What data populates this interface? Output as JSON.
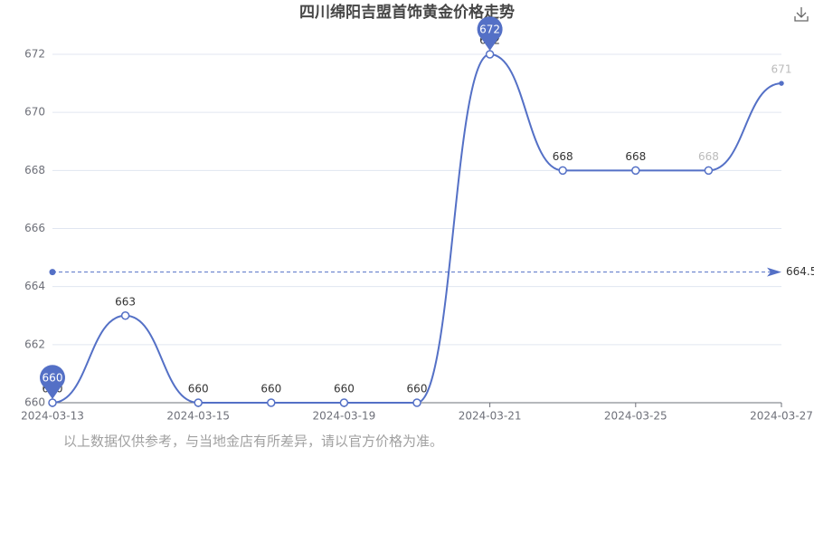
{
  "chart_data": {
    "type": "line",
    "title": "四川绵阳吉盟首饰黄金价格走势",
    "categories": [
      "2024-03-13",
      null,
      "2024-03-15",
      null,
      "2024-03-19",
      null,
      "2024-03-21",
      null,
      "2024-03-25",
      null,
      "2024-03-27"
    ],
    "values": [
      660,
      663,
      660,
      660,
      660,
      660,
      672,
      668,
      668,
      668,
      671
    ],
    "color": "#5470c6",
    "ylim": [
      660,
      672
    ],
    "yticks": [
      660,
      662,
      664,
      666,
      668,
      670,
      672
    ],
    "grid": true,
    "mean_line": 664.5,
    "max_point": 672,
    "min_point": 660,
    "footnote": "以上数据仅供参考，与当地金店有所差异，请以官方价格为准。"
  }
}
